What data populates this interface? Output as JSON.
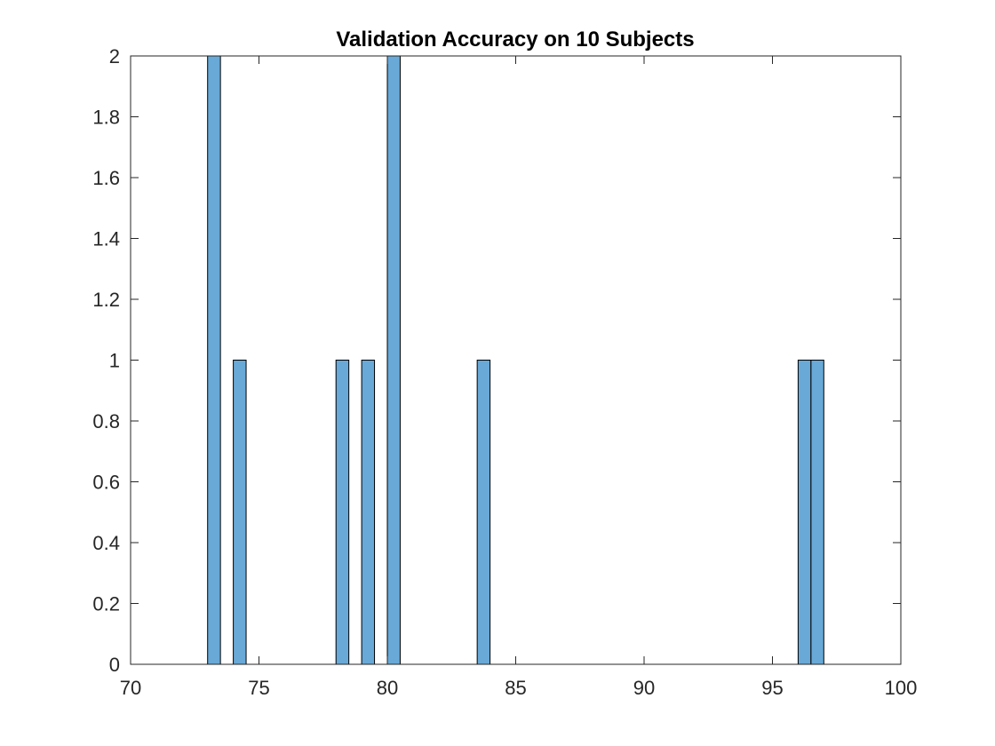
{
  "chart_data": {
    "type": "bar",
    "subtype": "histogram",
    "title": "Validation Accuracy on 10 Subjects",
    "xlabel": "",
    "ylabel": "",
    "xlim": [
      70,
      100
    ],
    "ylim": [
      0,
      2
    ],
    "bin_width": 0.5,
    "bins": [
      {
        "start": 73.0,
        "end": 73.5,
        "count": 2
      },
      {
        "start": 74.0,
        "end": 74.5,
        "count": 1
      },
      {
        "start": 78.0,
        "end": 78.5,
        "count": 1
      },
      {
        "start": 79.0,
        "end": 79.5,
        "count": 1
      },
      {
        "start": 80.0,
        "end": 80.5,
        "count": 2
      },
      {
        "start": 83.5,
        "end": 84.0,
        "count": 1
      },
      {
        "start": 96.0,
        "end": 96.5,
        "count": 1
      },
      {
        "start": 96.5,
        "end": 97.0,
        "count": 1
      }
    ],
    "x_ticks": [
      "70",
      "75",
      "80",
      "85",
      "90",
      "95",
      "100"
    ],
    "y_ticks": [
      "0",
      "0.2",
      "0.4",
      "0.6",
      "0.8",
      "1",
      "1.2",
      "1.4",
      "1.6",
      "1.8",
      "2"
    ],
    "grid": false,
    "legend": "none",
    "bar_color": "#4d9ad0",
    "edge_color": "#000000"
  }
}
